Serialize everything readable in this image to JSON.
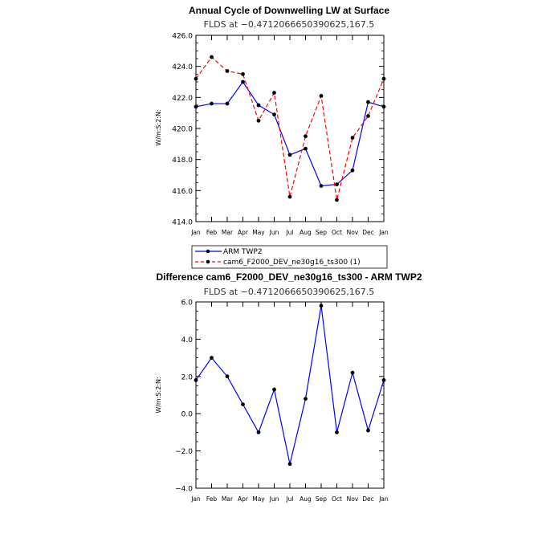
{
  "chart_data": [
    {
      "type": "line",
      "title": "Annual Cycle of Downwelling LW at Surface",
      "subtitle": "FLDS at −0.4712066650390625,167.5",
      "ylabel": "W/m:S:2:N:",
      "xlabel": "",
      "categories": [
        "Jan",
        "Feb",
        "Mar",
        "Apr",
        "May",
        "Jun",
        "Jul",
        "Aug",
        "Sep",
        "Oct",
        "Nov",
        "Dec",
        "Jan"
      ],
      "ylim": [
        414.0,
        426.0
      ],
      "yticks": [
        "414.0",
        "416.0",
        "418.0",
        "420.0",
        "422.0",
        "424.0",
        "426.0"
      ],
      "grid": false,
      "legend_position": "bottom",
      "series": [
        {
          "name": "ARM TWP2",
          "color": "#0000ff",
          "dash": "solid",
          "values": [
            421.4,
            421.6,
            421.6,
            423.0,
            421.5,
            420.9,
            418.3,
            418.7,
            416.3,
            416.4,
            417.3,
            421.7,
            421.4
          ]
        },
        {
          "name": "cam6_F2000_DEV_ne30g16_ts300 (1)",
          "color": "#ff0000",
          "dash": "dashed",
          "values": [
            423.2,
            424.6,
            423.7,
            423.5,
            420.5,
            422.3,
            415.6,
            419.5,
            422.1,
            415.4,
            419.4,
            420.8,
            423.2
          ]
        }
      ]
    },
    {
      "type": "line",
      "title": "Difference cam6_F2000_DEV_ne30g16_ts300 - ARM TWP2",
      "subtitle": "FLDS at −0.4712066650390625,167.5",
      "ylabel": "W/m:S:2:N:",
      "xlabel": "",
      "categories": [
        "Jan",
        "Feb",
        "Mar",
        "Apr",
        "May",
        "Jun",
        "Jul",
        "Aug",
        "Sep",
        "Oct",
        "Nov",
        "Dec",
        "Jan"
      ],
      "ylim": [
        -4.0,
        6.0
      ],
      "yticks": [
        "−4.0",
        "−2.0",
        "0.0",
        "2.0",
        "4.0",
        "6.0"
      ],
      "grid": false,
      "series": [
        {
          "name": "",
          "color": "#0000ff",
          "dash": "solid",
          "values": [
            1.8,
            3.0,
            2.0,
            0.5,
            -1.0,
            1.3,
            -2.7,
            0.8,
            5.8,
            -1.0,
            2.2,
            -0.9,
            1.8
          ]
        }
      ]
    }
  ]
}
